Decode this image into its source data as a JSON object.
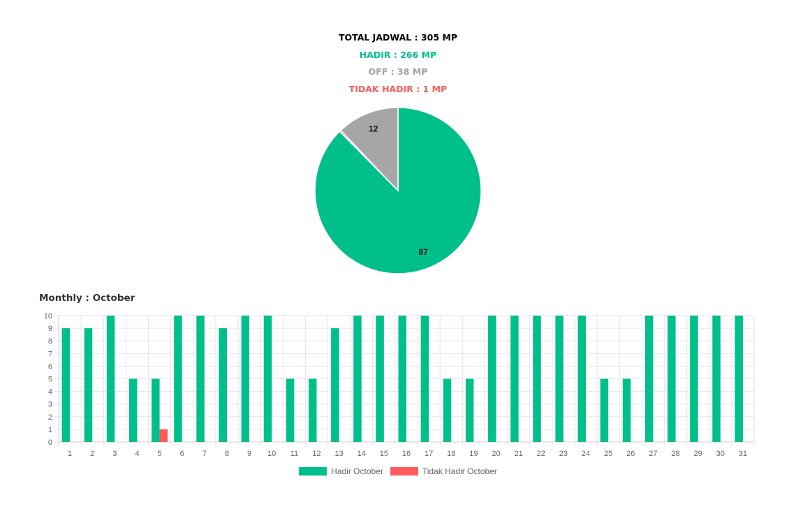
{
  "summary": {
    "total": "TOTAL JADWAL : 305 MP",
    "hadir": "HADIR : 266 MP",
    "off": "OFF : 38 MP",
    "tidak_hadir": "TIDAK HADIR : 1 MP"
  },
  "colors": {
    "hadir": "#00bf8a",
    "off": "#a6a6a6",
    "tidak_hadir": "#ff5b5b",
    "grid": "#e6e6e6",
    "tick": "#666666"
  },
  "monthly_title": "Monthly : October",
  "chart_data": [
    {
      "type": "pie",
      "slices": [
        {
          "value": 87,
          "label": "87",
          "color": "#00bf8a"
        },
        {
          "value": 0.3,
          "label": "",
          "color": "#ff5b5b"
        },
        {
          "value": 12,
          "label": "12",
          "color": "#a6a6a6"
        }
      ],
      "start": "top",
      "direction": "clockwise"
    },
    {
      "type": "bar",
      "title": "Monthly : October",
      "categories": [
        "1",
        "2",
        "3",
        "4",
        "5",
        "6",
        "7",
        "8",
        "9",
        "10",
        "11",
        "12",
        "13",
        "14",
        "15",
        "16",
        "17",
        "18",
        "19",
        "20",
        "21",
        "22",
        "23",
        "24",
        "25",
        "26",
        "27",
        "28",
        "29",
        "30",
        "31"
      ],
      "series": [
        {
          "name": "Hadir October",
          "color": "#00bf8a",
          "values": [
            9,
            9,
            10,
            5,
            5,
            10,
            10,
            9,
            10,
            10,
            5,
            5,
            9,
            10,
            10,
            10,
            10,
            5,
            5,
            10,
            10,
            10,
            10,
            10,
            5,
            5,
            10,
            10,
            10,
            10,
            10
          ]
        },
        {
          "name": "Tidak Hadir October",
          "color": "#ff5b5b",
          "values": [
            0,
            0,
            0,
            0,
            1,
            0,
            0,
            0,
            0,
            0,
            0,
            0,
            0,
            0,
            0,
            0,
            0,
            0,
            0,
            0,
            0,
            0,
            0,
            0,
            0,
            0,
            0,
            0,
            0,
            0,
            0
          ]
        }
      ],
      "yticks": [
        "0",
        "1",
        "2",
        "3",
        "4",
        "5",
        "6",
        "7",
        "8",
        "9",
        "10"
      ],
      "ylim": [
        0,
        10
      ],
      "grid": true,
      "legend": "bottom-center"
    }
  ]
}
